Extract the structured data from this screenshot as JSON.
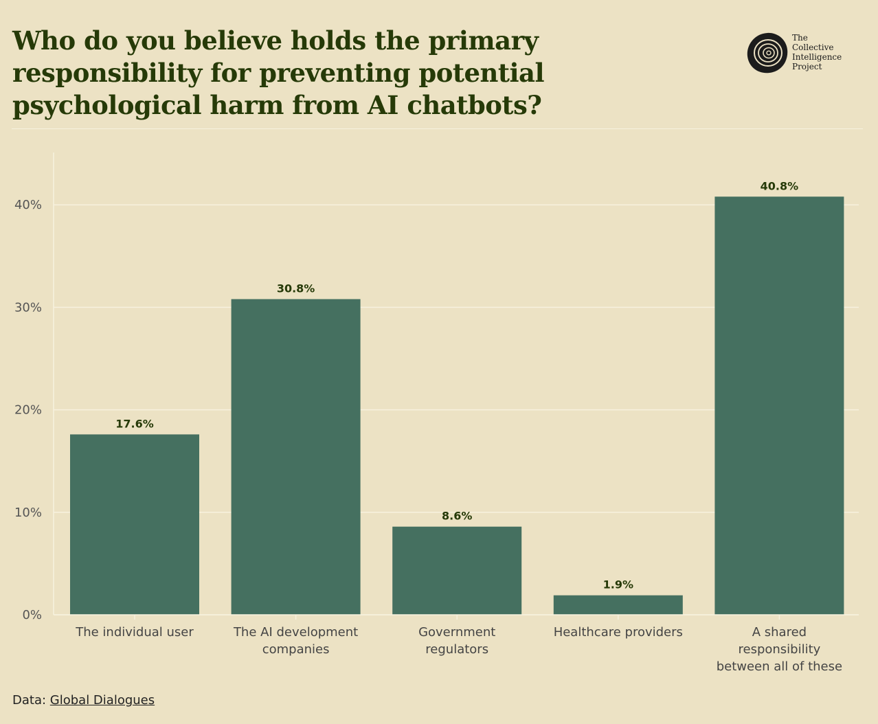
{
  "header": {
    "title": "Who do you believe holds the primary responsibility for preventing potential psychological harm from AI chatbots?"
  },
  "logo": {
    "lines": [
      "The",
      "Collective",
      "Intelligence",
      "Project"
    ],
    "icon": "tree-rings-icon"
  },
  "footer": {
    "prefix": "Data:",
    "link_text": "Global Dialogues"
  },
  "colors": {
    "background": "#ece2c4",
    "bar": "#457060",
    "title": "#263a08",
    "grid": "#f7f1de"
  },
  "chart_data": {
    "type": "bar",
    "title": "Who do you believe holds the primary responsibility for preventing potential psychological harm from AI chatbots?",
    "categories": [
      [
        "The individual user"
      ],
      [
        "The AI development",
        "companies"
      ],
      [
        "Government",
        "regulators"
      ],
      [
        "Healthcare providers"
      ],
      [
        "A shared",
        "responsibility",
        "between all of these"
      ]
    ],
    "category_names": [
      "The individual user",
      "The AI development companies",
      "Government regulators",
      "Healthcare providers",
      "A shared responsibility between all of these"
    ],
    "values": [
      17.6,
      30.8,
      8.6,
      1.9,
      40.8
    ],
    "value_labels": [
      "17.6%",
      "30.8%",
      "8.6%",
      "1.9%",
      "40.8%"
    ],
    "yticks": [
      0,
      10,
      20,
      30,
      40
    ],
    "ytick_labels": [
      "0%",
      "10%",
      "20%",
      "30%",
      "40%"
    ],
    "ylim": [
      0,
      45
    ],
    "xlabel": "",
    "ylabel": "",
    "grid": true,
    "legend": "none"
  }
}
